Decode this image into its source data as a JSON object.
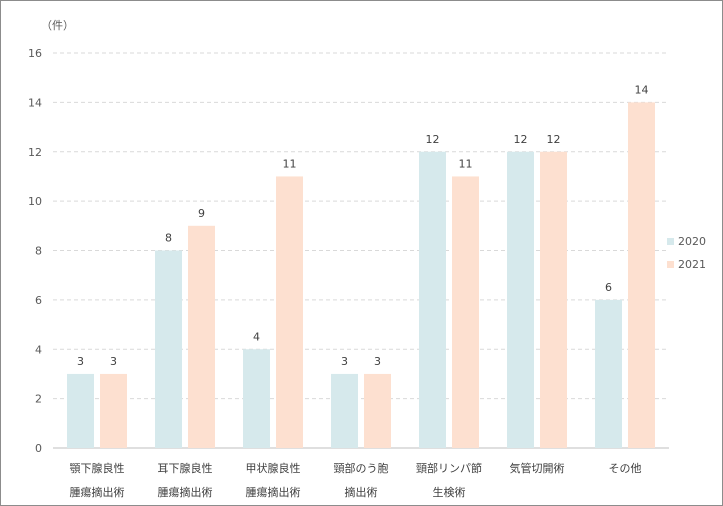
{
  "chart_data": {
    "type": "bar",
    "unit_label": "（件）",
    "categories": [
      [
        "顎下腺良性",
        "腫瘍摘出術"
      ],
      [
        "耳下腺良性",
        "腫瘍摘出術"
      ],
      [
        "甲状腺良性",
        "腫瘍摘出術"
      ],
      [
        "頸部のう胞",
        "摘出術"
      ],
      [
        "頸部リンパ節",
        "生検術"
      ],
      [
        "気管切開術"
      ],
      [
        "その他"
      ]
    ],
    "series": [
      {
        "name": "2020",
        "color": "#d6e9ec",
        "values": [
          3,
          8,
          4,
          3,
          12,
          12,
          6
        ]
      },
      {
        "name": "2021",
        "color": "#fde0d0",
        "values": [
          3,
          9,
          11,
          3,
          11,
          12,
          14
        ]
      }
    ],
    "ylim": [
      0,
      16
    ],
    "yticks": [
      0,
      2,
      4,
      6,
      8,
      10,
      12,
      14,
      16
    ],
    "grid": true,
    "legend_position": "right"
  }
}
